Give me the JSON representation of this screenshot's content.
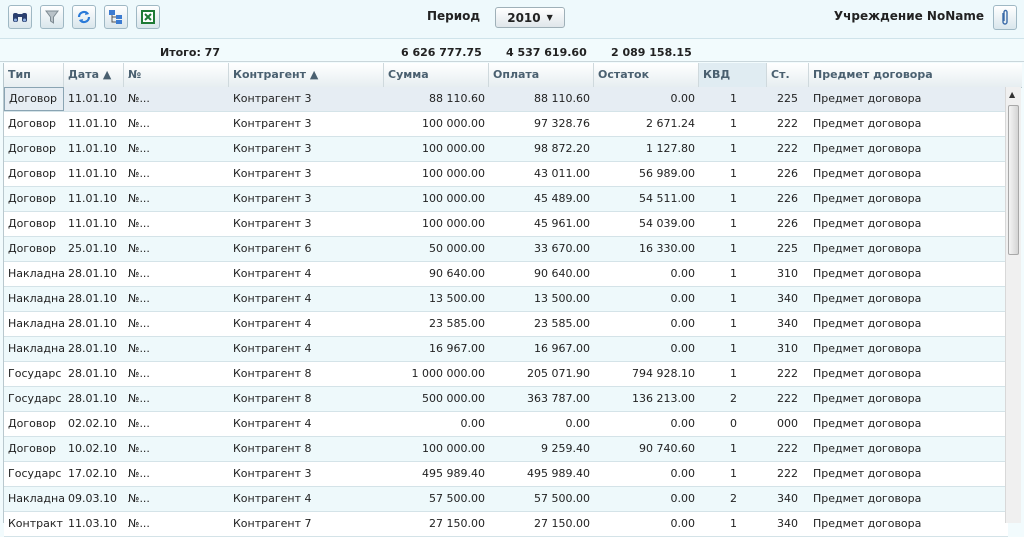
{
  "toolbar": {
    "icons": [
      "binoculars-icon",
      "filter-icon",
      "refresh-icon",
      "tree-icon",
      "excel-icon"
    ],
    "period_label": "Период",
    "period_value": "2010",
    "org_label": "Учреждение NoName"
  },
  "totals": {
    "label": "Итого: 77",
    "summa": "6 626 777.75",
    "oplata": "4 537 619.60",
    "ostatok": "2 089 158.15"
  },
  "columns": [
    "Тип",
    "Дата ▲",
    "№",
    "Контрагент ▲",
    "Сумма",
    "Оплата",
    "Остаток",
    "КВД",
    "Ст.",
    "Предмет договора"
  ],
  "rows": [
    [
      "Договор",
      "11.01.10",
      "№...",
      "Контрагент 3",
      "88 110.60",
      "88 110.60",
      "0.00",
      "1",
      "225",
      "Предмет договора"
    ],
    [
      "Договор",
      "11.01.10",
      "№...",
      "Контрагент 3",
      "100 000.00",
      "97 328.76",
      "2 671.24",
      "1",
      "222",
      "Предмет договора"
    ],
    [
      "Договор",
      "11.01.10",
      "№...",
      "Контрагент 3",
      "100 000.00",
      "98 872.20",
      "1 127.80",
      "1",
      "222",
      "Предмет договора"
    ],
    [
      "Договор",
      "11.01.10",
      "№...",
      "Контрагент 3",
      "100 000.00",
      "43 011.00",
      "56 989.00",
      "1",
      "226",
      "Предмет договора"
    ],
    [
      "Договор",
      "11.01.10",
      "№...",
      "Контрагент 3",
      "100 000.00",
      "45 489.00",
      "54 511.00",
      "1",
      "226",
      "Предмет договора"
    ],
    [
      "Договор",
      "11.01.10",
      "№...",
      "Контрагент 3",
      "100 000.00",
      "45 961.00",
      "54 039.00",
      "1",
      "226",
      "Предмет договора"
    ],
    [
      "Договор",
      "25.01.10",
      "№...",
      "Контрагент 6",
      "50 000.00",
      "33 670.00",
      "16 330.00",
      "1",
      "225",
      "Предмет договора"
    ],
    [
      "Накладна",
      "28.01.10",
      "№...",
      "Контрагент 4",
      "90 640.00",
      "90 640.00",
      "0.00",
      "1",
      "310",
      "Предмет договора"
    ],
    [
      "Накладна",
      "28.01.10",
      "№...",
      "Контрагент 4",
      "13 500.00",
      "13 500.00",
      "0.00",
      "1",
      "340",
      "Предмет договора"
    ],
    [
      "Накладна",
      "28.01.10",
      "№...",
      "Контрагент 4",
      "23 585.00",
      "23 585.00",
      "0.00",
      "1",
      "340",
      "Предмет договора"
    ],
    [
      "Накладна",
      "28.01.10",
      "№...",
      "Контрагент 4",
      "16 967.00",
      "16 967.00",
      "0.00",
      "1",
      "310",
      "Предмет договора"
    ],
    [
      "Государс",
      "28.01.10",
      "№...",
      "Контрагент 8",
      "1 000 000.00",
      "205 071.90",
      "794 928.10",
      "1",
      "222",
      "Предмет договора"
    ],
    [
      "Государс",
      "28.01.10",
      "№...",
      "Контрагент 8",
      "500 000.00",
      "363 787.00",
      "136 213.00",
      "2",
      "222",
      "Предмет договора"
    ],
    [
      "Договор",
      "02.02.10",
      "№...",
      "Контрагент 4",
      "0.00",
      "0.00",
      "0.00",
      "0",
      "000",
      "Предмет договора"
    ],
    [
      "Договор",
      "10.02.10",
      "№...",
      "Контрагент 8",
      "100 000.00",
      "9 259.40",
      "90 740.60",
      "1",
      "222",
      "Предмет договора"
    ],
    [
      "Государс",
      "17.02.10",
      "№...",
      "Контрагент 3",
      "495 989.40",
      "495 989.40",
      "0.00",
      "1",
      "222",
      "Предмет договора"
    ],
    [
      "Накладна",
      "09.03.10",
      "№...",
      "Контрагент 4",
      "57 500.00",
      "57 500.00",
      "0.00",
      "2",
      "340",
      "Предмет договора"
    ],
    [
      "Контракт",
      "11.03.10",
      "№...",
      "Контрагент 7",
      "27 150.00",
      "27 150.00",
      "0.00",
      "1",
      "340",
      "Предмет договора"
    ]
  ]
}
